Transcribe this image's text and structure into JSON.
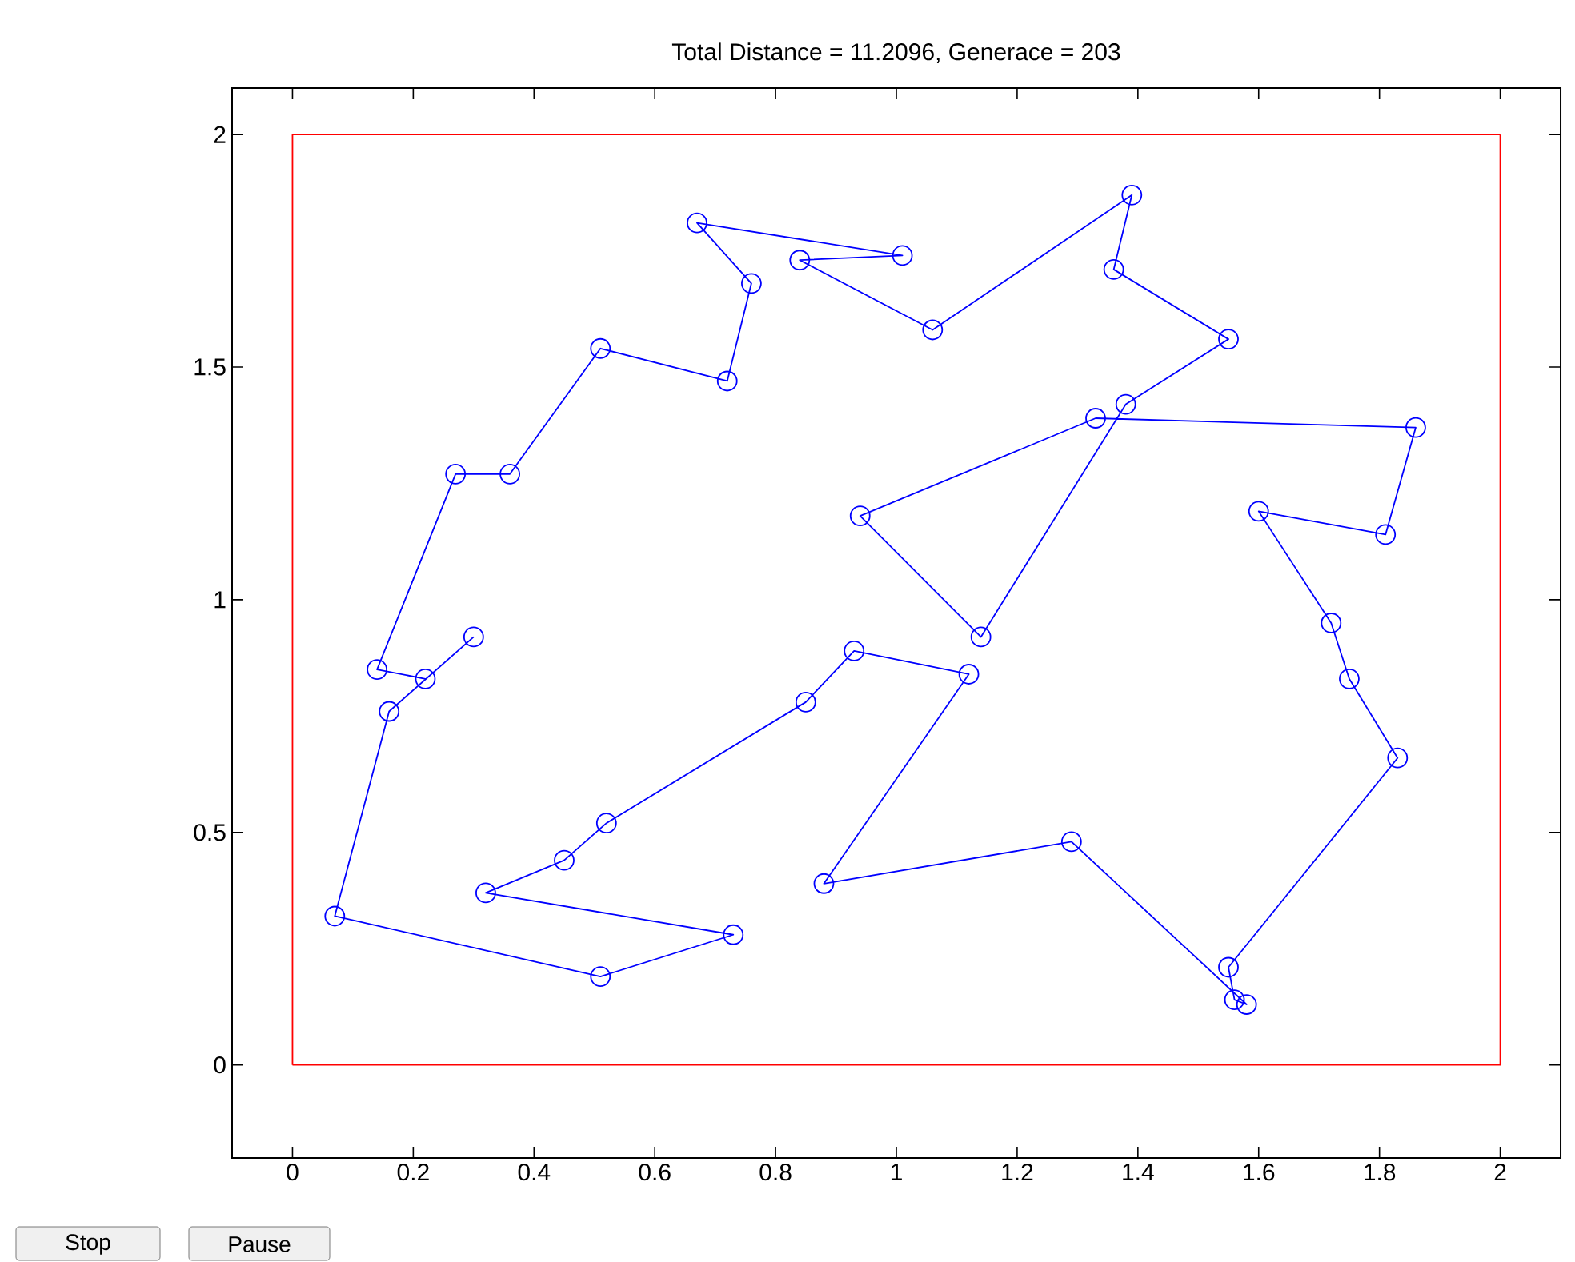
{
  "chart_data": {
    "type": "line",
    "title": "Total Distance = 11.2096, Generace = 203",
    "xlim": [
      -0.1,
      2.1
    ],
    "ylim": [
      -0.2,
      2.1
    ],
    "xticks": [
      0,
      0.2,
      0.4,
      0.6,
      0.8,
      1,
      1.2,
      1.4,
      1.6,
      1.8,
      2
    ],
    "yticks": [
      0,
      0.5,
      1,
      1.5,
      2
    ],
    "grid": false,
    "marker": "circle",
    "line_style": "solid",
    "series": [
      {
        "color": "#ff0000",
        "marker": "none",
        "x": [
          0,
          0,
          2
        ],
        "values": [
          0,
          2,
          2
        ]
      },
      {
        "color": "#ff0000",
        "marker": "none",
        "x": [
          2,
          2,
          0
        ],
        "values": [
          2,
          0,
          0
        ]
      },
      {
        "color": "#0000ff",
        "x": [
          0.22,
          0.14,
          0.27,
          0.36,
          0.51,
          0.72,
          0.76,
          0.67,
          1.01,
          0.84,
          1.06,
          1.39,
          1.36,
          1.55,
          1.38,
          1.14,
          0.94,
          1.33,
          1.86,
          1.81,
          1.6,
          1.72,
          1.75,
          1.83,
          1.55,
          1.56,
          1.58,
          1.29,
          0.88,
          1.12,
          0.93,
          0.85,
          0.52,
          0.45,
          0.32,
          0.73,
          0.51,
          0.07,
          0.16,
          0.3
        ],
        "values": [
          0.83,
          0.85,
          1.27,
          1.27,
          1.54,
          1.47,
          1.68,
          1.81,
          1.74,
          1.73,
          1.58,
          1.87,
          1.71,
          1.56,
          1.42,
          0.92,
          1.18,
          1.39,
          1.37,
          1.14,
          1.19,
          0.95,
          0.83,
          0.66,
          0.21,
          0.14,
          0.13,
          0.48,
          0.39,
          0.84,
          0.89,
          0.78,
          0.52,
          0.44,
          0.37,
          0.28,
          0.19,
          0.32,
          0.76,
          0.92
        ]
      }
    ],
    "annotations": [
      "Stop",
      "Pause"
    ]
  }
}
